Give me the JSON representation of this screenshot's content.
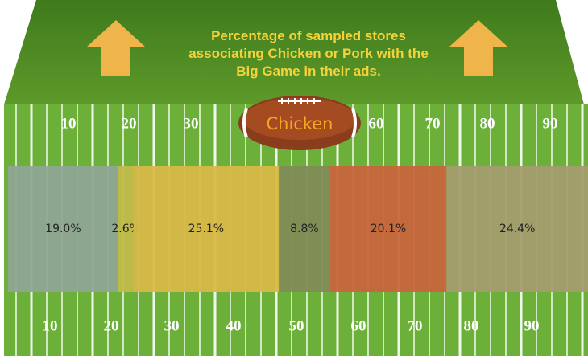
{
  "chart_data": {
    "type": "stacked-bar",
    "title": [
      "Percentage of sampled stores",
      "associating Chicken or Pork with the",
      "Big Game in their ads."
    ],
    "ball_label": "Chicken",
    "values": [
      19.0,
      2.6,
      25.1,
      8.8,
      20.1,
      24.4
    ],
    "value_labels": [
      "19.0%",
      "2.6%",
      "25.1%",
      "8.8%",
      "20.1%",
      "24.4%"
    ],
    "colors": [
      "#8fa694",
      "#c3bb4a",
      "#d8b848",
      "#7f8c56",
      "#c7663c",
      "#a59d6e"
    ],
    "xlim": [
      0,
      100
    ],
    "field_numbers_top": [
      "10",
      "20",
      "30",
      "60",
      "70",
      "80",
      "90"
    ],
    "field_numbers_bottom": [
      "10",
      "20",
      "30",
      "40",
      "50",
      "60",
      "70",
      "80",
      "90"
    ]
  }
}
